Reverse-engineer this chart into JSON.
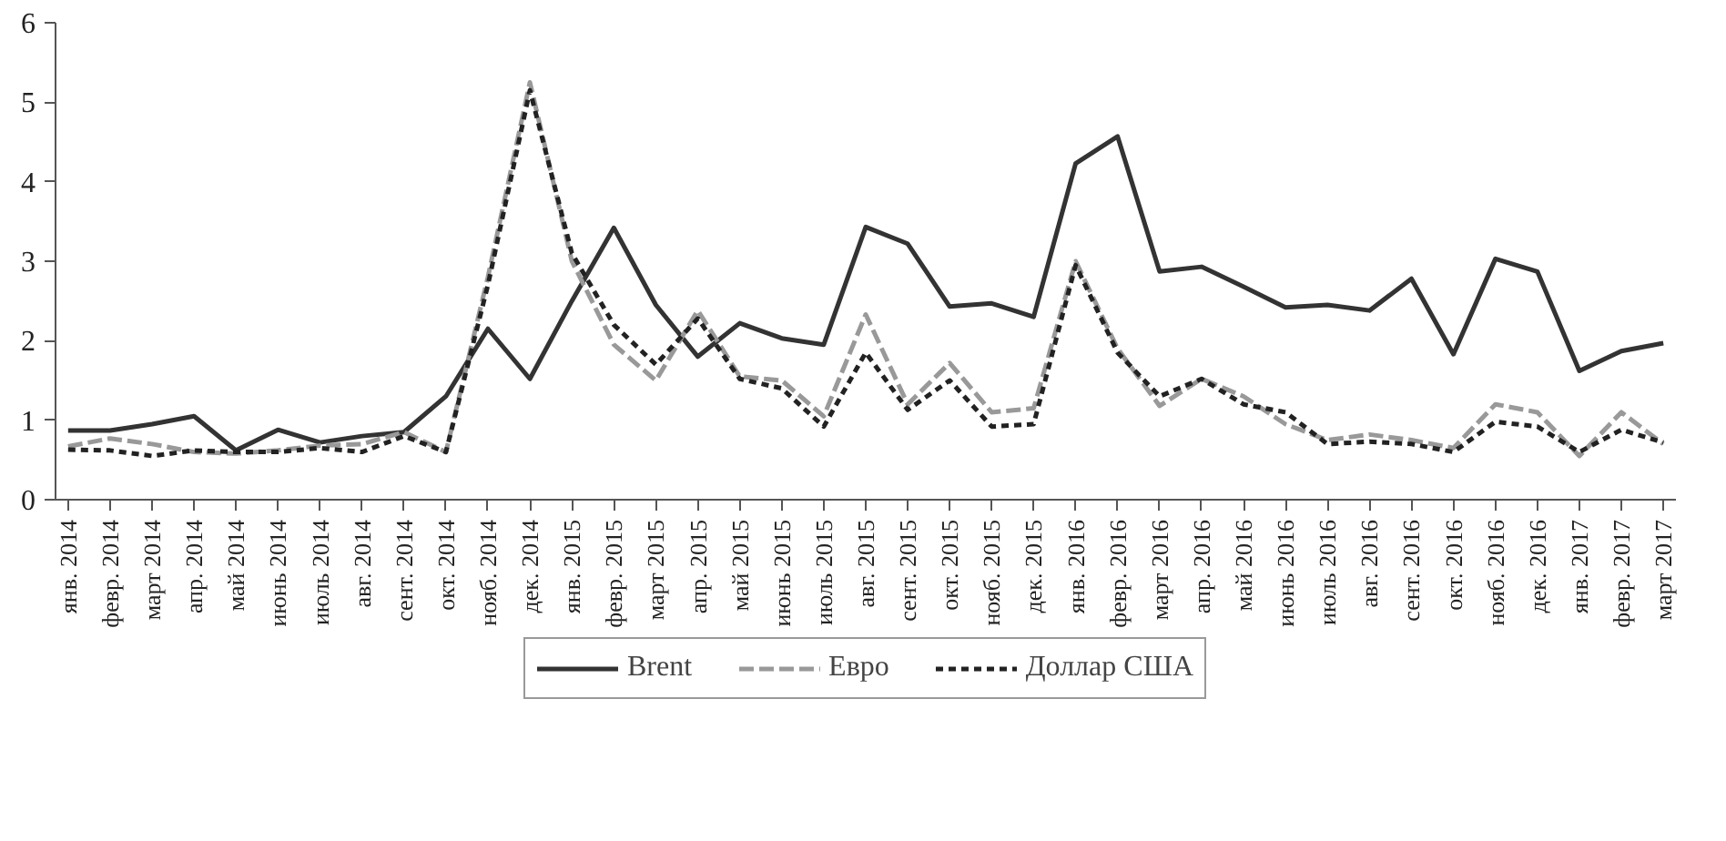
{
  "chart_data": {
    "type": "line",
    "categories": [
      "янв. 2014",
      "февр. 2014",
      "март 2014",
      "апр. 2014",
      "май 2014",
      "июнь 2014",
      "июль 2014",
      "авг. 2014",
      "сент. 2014",
      "окт. 2014",
      "нояб. 2014",
      "дек. 2014",
      "янв. 2015",
      "февр. 2015",
      "март 2015",
      "апр. 2015",
      "май 2015",
      "июнь 2015",
      "июль 2015",
      "авг. 2015",
      "сент. 2015",
      "окт. 2015",
      "нояб. 2015",
      "дек. 2015",
      "янв. 2016",
      "февр. 2016",
      "март 2016",
      "апр. 2016",
      "май 2016",
      "июнь 2016",
      "июль 2016",
      "авг. 2016",
      "сент. 2016",
      "окт. 2016",
      "нояб. 2016",
      "дек. 2016",
      "янв. 2017",
      "февр. 2017",
      "март 2017"
    ],
    "series": [
      {
        "name": "Brent",
        "color": "#333333",
        "line_style": "solid",
        "values": [
          0.87,
          0.87,
          0.95,
          1.05,
          0.62,
          0.88,
          0.72,
          0.8,
          0.85,
          1.3,
          2.15,
          1.52,
          2.5,
          3.42,
          2.45,
          1.8,
          2.22,
          2.03,
          1.95,
          3.43,
          3.22,
          2.43,
          2.47,
          2.3,
          4.23,
          4.57,
          2.87,
          2.93,
          2.68,
          2.42,
          2.45,
          2.38,
          2.78,
          1.83,
          3.03,
          2.87,
          1.62,
          1.87,
          1.97
        ]
      },
      {
        "name": "Евро",
        "color": "#999999",
        "line_style": "dashed",
        "values": [
          0.67,
          0.77,
          0.7,
          0.6,
          0.58,
          0.62,
          0.68,
          0.7,
          0.85,
          0.6,
          2.8,
          5.25,
          3.0,
          1.95,
          1.5,
          2.38,
          1.55,
          1.5,
          1.05,
          2.33,
          1.2,
          1.72,
          1.1,
          1.15,
          3.0,
          1.9,
          1.18,
          1.52,
          1.3,
          0.95,
          0.75,
          0.82,
          0.75,
          0.65,
          1.2,
          1.1,
          0.55,
          1.1,
          0.7
        ]
      },
      {
        "name": "Доллар США",
        "color": "#222222",
        "line_style": "dotted",
        "values": [
          0.63,
          0.62,
          0.55,
          0.62,
          0.6,
          0.6,
          0.65,
          0.6,
          0.8,
          0.6,
          2.7,
          5.15,
          3.1,
          2.2,
          1.7,
          2.28,
          1.52,
          1.4,
          0.92,
          1.85,
          1.13,
          1.5,
          0.92,
          0.95,
          2.95,
          1.85,
          1.3,
          1.52,
          1.2,
          1.1,
          0.7,
          0.73,
          0.7,
          0.6,
          0.98,
          0.92,
          0.6,
          0.88,
          0.72
        ]
      }
    ],
    "ylim": [
      0,
      6
    ],
    "yticks": [
      0,
      1,
      2,
      3,
      4,
      5,
      6
    ],
    "grid": false,
    "legend": "bottom",
    "marker": "none"
  }
}
